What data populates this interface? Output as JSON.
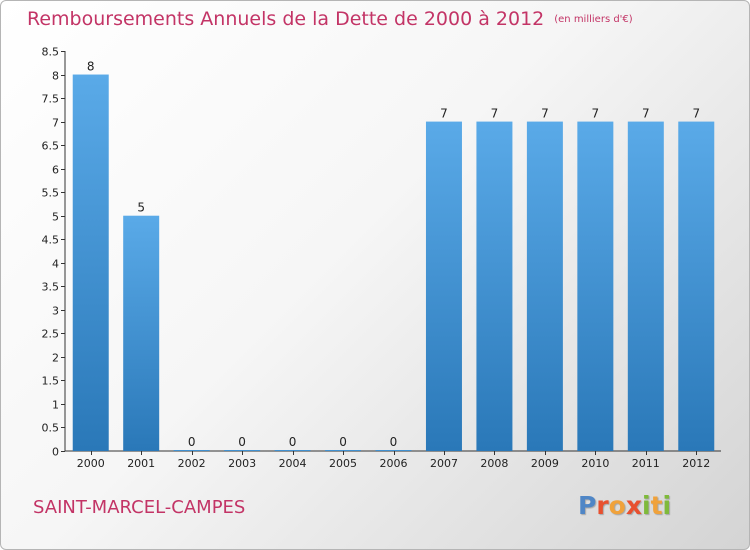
{
  "header": {
    "title": "Remboursements Annuels de la Dette de 2000 à 2012",
    "unit": "(en milliers d'€)"
  },
  "footer": {
    "commune": "SAINT-MARCEL-CAMPES",
    "logo_letters": [
      "P",
      "r",
      "o",
      "x",
      "i",
      "t",
      "i"
    ]
  },
  "colors": {
    "title": "#c33466",
    "bar_light": "#5aaae8",
    "bar_dark": "#2a78b8",
    "logo": [
      "#4f86c6",
      "#e8502f",
      "#f0a23b",
      "#e8502f",
      "#7fba3a",
      "#f0a23b",
      "#7fba3a"
    ]
  },
  "chart_data": {
    "type": "bar",
    "categories": [
      "2000",
      "2001",
      "2002",
      "2003",
      "2004",
      "2005",
      "2006",
      "2007",
      "2008",
      "2009",
      "2010",
      "2011",
      "2012"
    ],
    "values": [
      8,
      5,
      0,
      0,
      0,
      0,
      0,
      7,
      7,
      7,
      7,
      7,
      7
    ],
    "value_labels": [
      "8",
      "5",
      "0",
      "0",
      "0",
      "0",
      "0",
      "7",
      "7",
      "7",
      "7",
      "7",
      "7"
    ],
    "yticks": [
      0,
      0.5,
      1,
      1.5,
      2,
      2.5,
      3,
      3.5,
      4,
      4.5,
      5,
      5.5,
      6,
      6.5,
      7,
      7.5,
      8,
      8.5
    ],
    "ytick_labels": [
      "0",
      "0.5",
      "1",
      "1.5",
      "2",
      "2.5",
      "3",
      "3.5",
      "4",
      "4.5",
      "5",
      "5.5",
      "6",
      "6.5",
      "7",
      "7.5",
      "8",
      "8.5"
    ],
    "ylim": [
      0,
      8.5
    ],
    "title": "Remboursements Annuels de la Dette de 2000 à 2012",
    "ylabel": "",
    "xlabel": "",
    "grid": false,
    "legend": "none"
  }
}
